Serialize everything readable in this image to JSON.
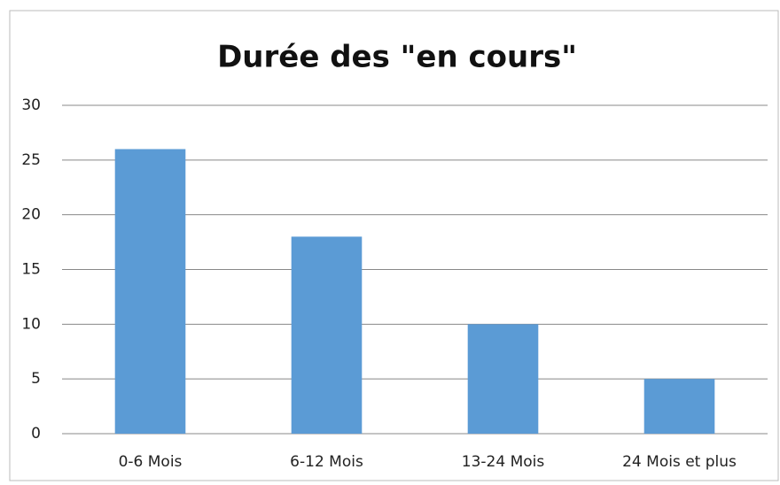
{
  "chart_data": {
    "type": "bar",
    "title": "Durée des \"en cours\"",
    "categories": [
      "0-6 Mois",
      "6-12 Mois",
      "13-24 Mois",
      "24 Mois et plus"
    ],
    "values": [
      26,
      18,
      10,
      5
    ],
    "color": "#5b9bd5",
    "ylim": [
      0,
      30
    ],
    "yticks": [
      0,
      5,
      10,
      15,
      20,
      25,
      30
    ],
    "grid": true
  }
}
